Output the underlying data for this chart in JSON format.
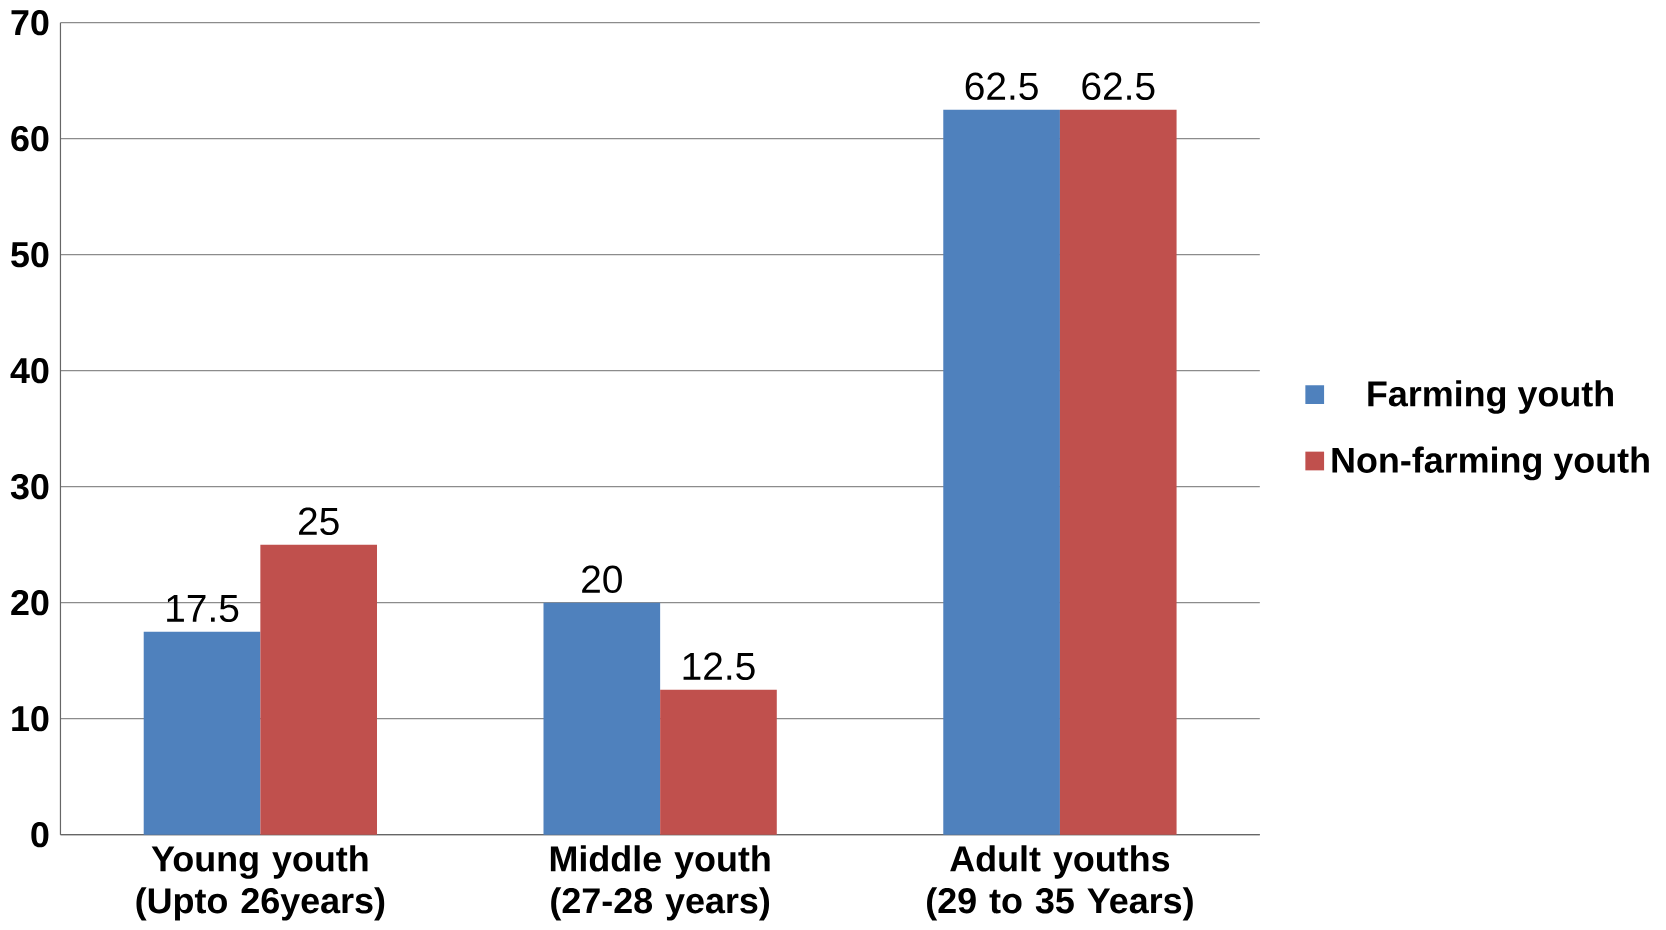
{
  "chart_data": {
    "type": "bar",
    "categories": [
      "Young youth (Upto 26years)",
      "Middle youth (27-28 years)",
      "Adult youths (29  to 35 Years)"
    ],
    "series": [
      {
        "name": "Farming youth",
        "color": "#4f81bd",
        "values": [
          17.5,
          20,
          62.5
        ]
      },
      {
        "name": "Non-farming youth",
        "color": "#c0504d",
        "values": [
          25,
          12.5,
          62.5
        ]
      }
    ],
    "ylim": [
      0,
      70
    ],
    "yticks": [
      0,
      10,
      20,
      30,
      40,
      50,
      60,
      70
    ],
    "grid": "y",
    "legend": "right",
    "data_labels": true
  }
}
